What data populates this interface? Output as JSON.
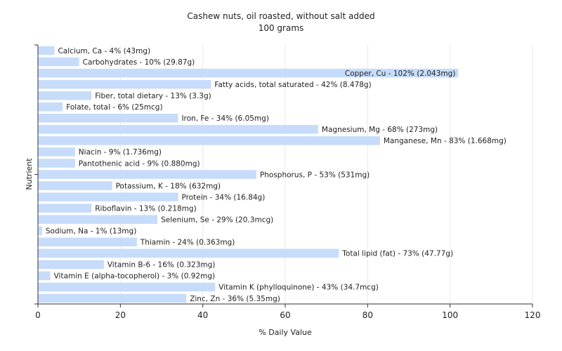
{
  "chart_data": {
    "type": "bar",
    "orientation": "horizontal",
    "title": "Cashew nuts, oil roasted, without salt added",
    "subtitle": "100 grams",
    "xlabel": "% Daily Value",
    "ylabel": "Nutrient",
    "xlim": [
      0,
      120
    ],
    "xticks": [
      0,
      20,
      40,
      60,
      80,
      100,
      120
    ],
    "grid": true,
    "bar_color": "#c6dcfa",
    "categories": [
      "Calcium, Ca",
      "Carbohydrates",
      "Copper, Cu",
      "Fatty acids, total saturated",
      "Fiber, total dietary",
      "Folate, total",
      "Iron, Fe",
      "Magnesium, Mg",
      "Manganese, Mn",
      "Niacin",
      "Pantothenic acid",
      "Phosphorus, P",
      "Potassium, K",
      "Protein",
      "Riboflavin",
      "Selenium, Se",
      "Sodium, Na",
      "Thiamin",
      "Total lipid (fat)",
      "Vitamin B-6",
      "Vitamin E (alpha-tocopherol)",
      "Vitamin K (phylloquinone)",
      "Zinc, Zn"
    ],
    "values": [
      4,
      10,
      102,
      42,
      13,
      6,
      34,
      68,
      83,
      9,
      9,
      53,
      18,
      34,
      13,
      29,
      1,
      24,
      73,
      16,
      3,
      43,
      36
    ],
    "labels": [
      "Calcium, Ca - 4% (43mg)",
      "Carbohydrates - 10% (29.87g)",
      "Copper, Cu - 102% (2.043mg)",
      "Fatty acids, total saturated - 42% (8.478g)",
      "Fiber, total dietary - 13% (3.3g)",
      "Folate, total - 6% (25mcg)",
      "Iron, Fe - 34% (6.05mg)",
      "Magnesium, Mg - 68% (273mg)",
      "Manganese, Mn - 83% (1.668mg)",
      "Niacin - 9% (1.736mg)",
      "Pantothenic acid - 9% (0.880mg)",
      "Phosphorus, P - 53% (531mg)",
      "Potassium, K - 18% (632mg)",
      "Protein - 34% (16.84g)",
      "Riboflavin - 13% (0.218mg)",
      "Selenium, Se - 29% (20.3mcg)",
      "Sodium, Na - 1% (13mg)",
      "Thiamin - 24% (0.363mg)",
      "Total lipid (fat) - 73% (47.77g)",
      "Vitamin B-6 - 16% (0.323mg)",
      "Vitamin E (alpha-tocopherol) - 3% (0.92mg)",
      "Vitamin K (phylloquinone) - 43% (34.7mcg)",
      "Zinc, Zn - 36% (5.35mg)"
    ]
  }
}
